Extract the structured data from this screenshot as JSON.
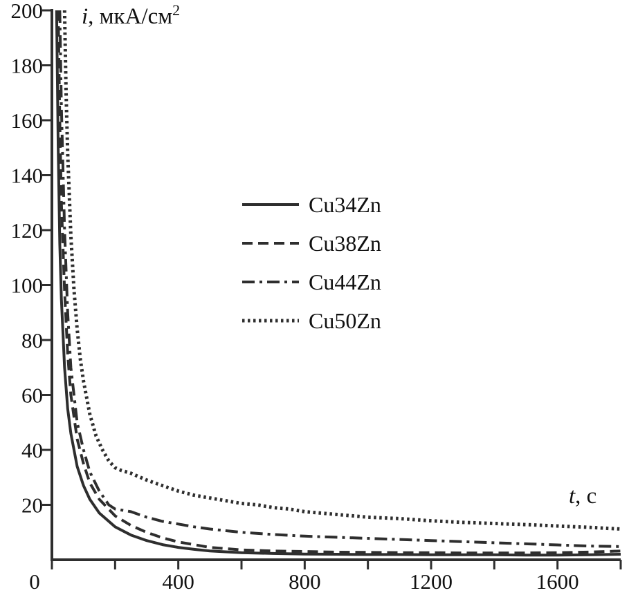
{
  "chart": {
    "y_label_symbol": "i",
    "y_label_unit": ", мкА/см",
    "y_label_sup": "2",
    "x_label_symbol": "t",
    "x_label_unit": ", c"
  },
  "chart_data": {
    "type": "line",
    "title": "",
    "ylabel": "i, мкА/см²",
    "xlabel": "t, c",
    "xlim": [
      0,
      1800
    ],
    "ylim": [
      0,
      200
    ],
    "xticks_labeled": [
      0,
      400,
      800,
      1200,
      1600
    ],
    "xtick_minor_step": 200,
    "yticks": [
      20,
      40,
      60,
      80,
      100,
      120,
      140,
      160,
      180,
      200
    ],
    "grid": false,
    "legend_position": "inside upper middle-left",
    "line_color": "#2e2e2e",
    "series": [
      {
        "name": "Cu34Zn",
        "style": "solid",
        "points": [
          [
            15,
            200
          ],
          [
            20,
            150
          ],
          [
            25,
            115
          ],
          [
            30,
            95
          ],
          [
            40,
            70
          ],
          [
            50,
            55
          ],
          [
            60,
            46
          ],
          [
            80,
            34
          ],
          [
            100,
            27
          ],
          [
            120,
            22
          ],
          [
            150,
            17
          ],
          [
            200,
            12
          ],
          [
            250,
            9
          ],
          [
            300,
            7
          ],
          [
            350,
            5.5
          ],
          [
            400,
            4.5
          ],
          [
            450,
            3.8
          ],
          [
            500,
            3.2
          ],
          [
            600,
            2.6
          ],
          [
            700,
            2.3
          ],
          [
            800,
            2.1
          ],
          [
            900,
            2
          ],
          [
            1000,
            1.9
          ],
          [
            1100,
            1.9
          ],
          [
            1200,
            1.8
          ],
          [
            1300,
            1.8
          ],
          [
            1400,
            1.8
          ],
          [
            1500,
            1.7
          ],
          [
            1600,
            1.7
          ],
          [
            1700,
            1.8
          ],
          [
            1800,
            2
          ]
        ]
      },
      {
        "name": "Cu38Zn",
        "style": "dashed",
        "points": [
          [
            20,
            200
          ],
          [
            25,
            160
          ],
          [
            30,
            130
          ],
          [
            40,
            98
          ],
          [
            50,
            75
          ],
          [
            60,
            60
          ],
          [
            80,
            44
          ],
          [
            100,
            35
          ],
          [
            120,
            28
          ],
          [
            150,
            22
          ],
          [
            200,
            16
          ],
          [
            250,
            12.5
          ],
          [
            300,
            10
          ],
          [
            350,
            8
          ],
          [
            400,
            6.5
          ],
          [
            450,
            5.5
          ],
          [
            500,
            4.5
          ],
          [
            600,
            3.6
          ],
          [
            700,
            3.2
          ],
          [
            800,
            3
          ],
          [
            900,
            2.8
          ],
          [
            1000,
            2.7
          ],
          [
            1100,
            2.6
          ],
          [
            1200,
            2.6
          ],
          [
            1300,
            2.5
          ],
          [
            1400,
            2.5
          ],
          [
            1500,
            2.5
          ],
          [
            1600,
            2.6
          ],
          [
            1700,
            2.8
          ],
          [
            1800,
            3.2
          ]
        ]
      },
      {
        "name": "Cu44Zn",
        "style": "dashdot",
        "points": [
          [
            25,
            200
          ],
          [
            30,
            165
          ],
          [
            40,
            120
          ],
          [
            50,
            90
          ],
          [
            60,
            70
          ],
          [
            80,
            50
          ],
          [
            100,
            40
          ],
          [
            120,
            32
          ],
          [
            150,
            25
          ],
          [
            180,
            20
          ],
          [
            200,
            18.5
          ],
          [
            250,
            17.5
          ],
          [
            300,
            15.5
          ],
          [
            350,
            14
          ],
          [
            400,
            13
          ],
          [
            450,
            12
          ],
          [
            500,
            11.2
          ],
          [
            600,
            10
          ],
          [
            700,
            9.2
          ],
          [
            800,
            8.6
          ],
          [
            900,
            8.2
          ],
          [
            1000,
            7.8
          ],
          [
            1100,
            7.4
          ],
          [
            1200,
            7
          ],
          [
            1300,
            6.6
          ],
          [
            1400,
            6.2
          ],
          [
            1500,
            5.8
          ],
          [
            1600,
            5.4
          ],
          [
            1700,
            5
          ],
          [
            1800,
            4.8
          ]
        ]
      },
      {
        "name": "Cu50Zn",
        "style": "dotted",
        "points": [
          [
            40,
            200
          ],
          [
            45,
            170
          ],
          [
            50,
            148
          ],
          [
            60,
            118
          ],
          [
            70,
            98
          ],
          [
            80,
            84
          ],
          [
            90,
            73
          ],
          [
            100,
            65
          ],
          [
            120,
            53
          ],
          [
            140,
            45
          ],
          [
            160,
            40
          ],
          [
            180,
            36
          ],
          [
            200,
            33.5
          ],
          [
            220,
            32.5
          ],
          [
            250,
            31.5
          ],
          [
            280,
            30
          ],
          [
            300,
            29
          ],
          [
            350,
            27
          ],
          [
            400,
            25
          ],
          [
            450,
            23.5
          ],
          [
            500,
            22.5
          ],
          [
            550,
            21.5
          ],
          [
            600,
            20.5
          ],
          [
            650,
            20
          ],
          [
            700,
            19
          ],
          [
            750,
            18.5
          ],
          [
            800,
            17.5
          ],
          [
            850,
            17
          ],
          [
            900,
            16.5
          ],
          [
            950,
            16
          ],
          [
            1000,
            15.5
          ],
          [
            1100,
            15
          ],
          [
            1200,
            14.2
          ],
          [
            1300,
            13.6
          ],
          [
            1400,
            13.2
          ],
          [
            1500,
            12.8
          ],
          [
            1600,
            12.3
          ],
          [
            1700,
            11.8
          ],
          [
            1800,
            11.2
          ]
        ]
      }
    ]
  }
}
